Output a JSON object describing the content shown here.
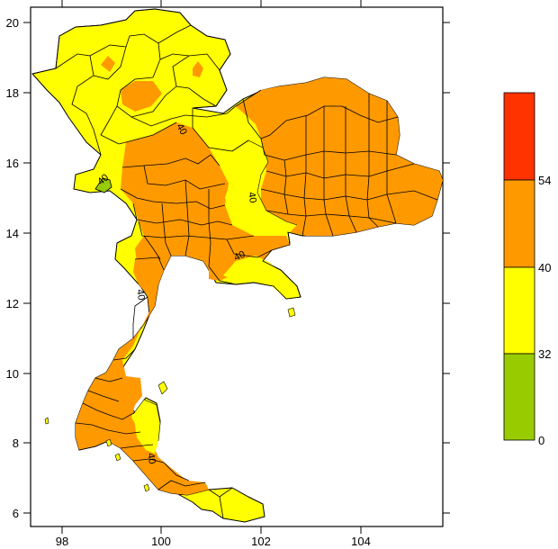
{
  "map": {
    "x_ticks": [
      "98",
      "100",
      "102",
      "104"
    ],
    "y_ticks": [
      "20",
      "18",
      "16",
      "14",
      "12",
      "10",
      "8",
      "6"
    ],
    "contour_labels": [
      "40",
      "40",
      "40",
      "40",
      "40",
      "40"
    ]
  },
  "legend": {
    "bins": [
      {
        "from": 0,
        "to": 32,
        "color": "#99cc00"
      },
      {
        "from": 32,
        "to": 40,
        "color": "#ffff00"
      },
      {
        "from": 40,
        "to": 54,
        "color": "#ff9900"
      },
      {
        "from": 54,
        "to": null,
        "color": "#ff3300"
      }
    ],
    "labels": [
      "54",
      "40",
      "32",
      "0"
    ]
  },
  "colors": {
    "green": "#99cc00",
    "yellow": "#ffff00",
    "orange": "#ff9900",
    "red": "#ff3300"
  }
}
